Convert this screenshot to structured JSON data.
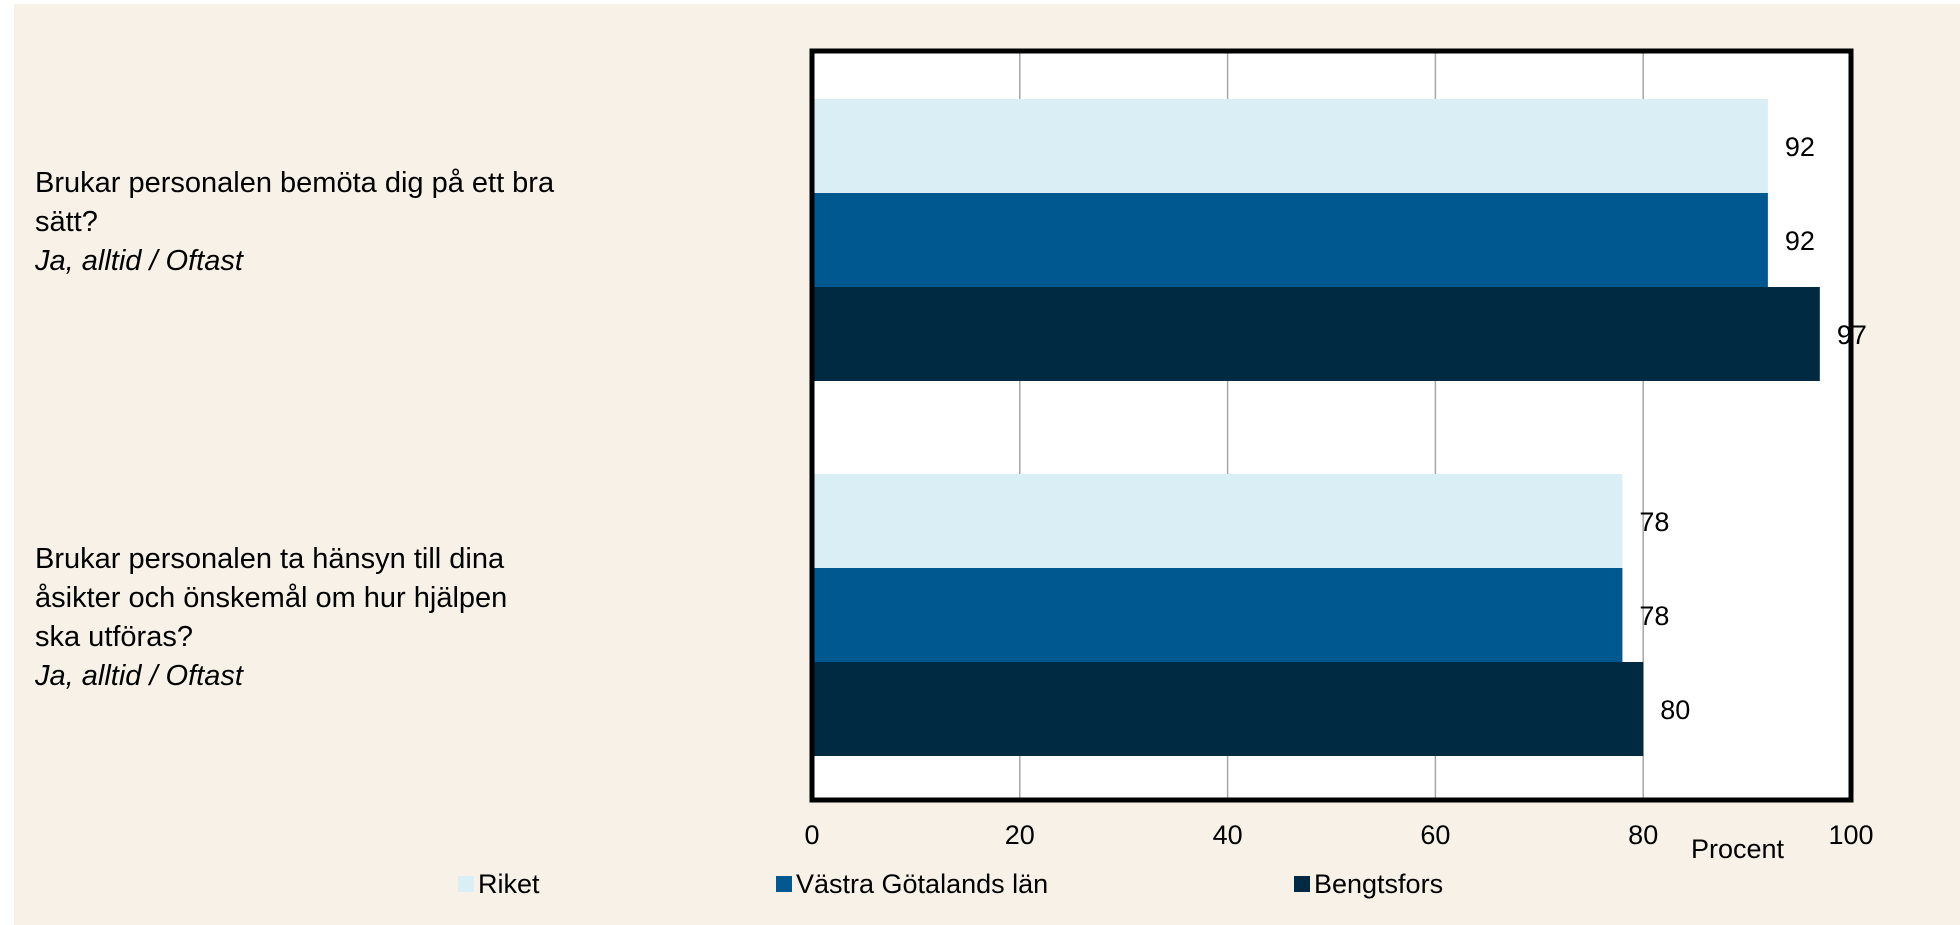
{
  "chart_data": {
    "type": "bar",
    "orientation": "horizontal",
    "categories": [
      {
        "question": "Brukar personalen bemöta dig på ett bra sätt?",
        "answer": "Ja, alltid / Oftast"
      },
      {
        "question": "Brukar personalen ta hänsyn till dina åsikter och önskemål om hur hjälpen ska utföras?",
        "answer": "Ja, alltid / Oftast"
      }
    ],
    "series": [
      {
        "name": "Riket",
        "color": "#daeef5",
        "values": [
          92,
          78
        ]
      },
      {
        "name": "Västra Götalands län",
        "color": "#005891",
        "values": [
          92,
          78
        ]
      },
      {
        "name": "Bengtsfors",
        "color": "#002a42",
        "values": [
          97,
          80
        ]
      }
    ],
    "xlim": [
      0,
      100
    ],
    "xticks": [
      0,
      20,
      40,
      60,
      80,
      100
    ],
    "xlabel": "Procent",
    "grid": "vertical",
    "legend": "bottom"
  }
}
